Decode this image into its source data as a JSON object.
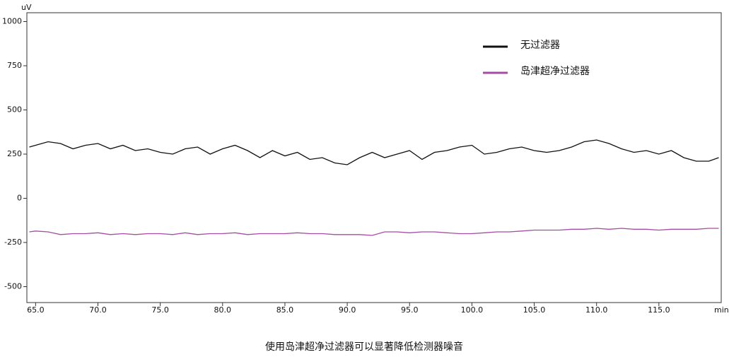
{
  "chart_data": {
    "type": "line",
    "caption": "使用岛津超净过滤器可以显著降低检测器噪音",
    "y_unit": "uV",
    "x_unit": "min",
    "x": [
      64.5,
      65,
      66,
      67,
      68,
      69,
      70,
      71,
      72,
      73,
      74,
      75,
      76,
      77,
      78,
      79,
      80,
      81,
      82,
      83,
      84,
      85,
      86,
      87,
      88,
      89,
      90,
      91,
      92,
      93,
      94,
      95,
      96,
      97,
      98,
      99,
      100,
      101,
      102,
      103,
      104,
      105,
      106,
      107,
      108,
      109,
      110,
      111,
      112,
      113,
      114,
      115,
      116,
      117,
      118,
      119,
      119.8
    ],
    "series": [
      {
        "name": "无过滤器",
        "color": "#111111",
        "values": [
          290,
          300,
          320,
          310,
          280,
          300,
          310,
          280,
          300,
          270,
          280,
          260,
          250,
          280,
          290,
          250,
          280,
          300,
          270,
          230,
          270,
          240,
          260,
          220,
          230,
          200,
          190,
          230,
          260,
          230,
          250,
          270,
          220,
          260,
          270,
          290,
          300,
          250,
          260,
          280,
          290,
          270,
          260,
          270,
          290,
          320,
          330,
          310,
          280,
          260,
          270,
          250,
          270,
          230,
          210,
          210,
          230
        ]
      },
      {
        "name": "岛津超净过滤器",
        "color": "#a64ca6",
        "values": [
          -190,
          -185,
          -190,
          -205,
          -200,
          -200,
          -195,
          -205,
          -200,
          -205,
          -200,
          -200,
          -205,
          -195,
          -205,
          -200,
          -200,
          -195,
          -205,
          -200,
          -200,
          -200,
          -195,
          -200,
          -200,
          -205,
          -205,
          -205,
          -210,
          -190,
          -190,
          -195,
          -190,
          -190,
          -195,
          -200,
          -200,
          -195,
          -190,
          -190,
          -185,
          -180,
          -180,
          -180,
          -175,
          -175,
          -170,
          -175,
          -170,
          -175,
          -175,
          -180,
          -175,
          -175,
          -175,
          -170,
          -170
        ]
      }
    ],
    "xlim": [
      64.3,
      120
    ],
    "ylim": [
      -590,
      1050
    ],
    "xticks": [
      {
        "value": 65,
        "label": "65.0"
      },
      {
        "value": 70,
        "label": "70.0"
      },
      {
        "value": 75,
        "label": "75.0"
      },
      {
        "value": 80,
        "label": "80.0"
      },
      {
        "value": 85,
        "label": "85.0"
      },
      {
        "value": 90,
        "label": "90.0"
      },
      {
        "value": 95,
        "label": "95.0"
      },
      {
        "value": 100,
        "label": "100.0"
      },
      {
        "value": 105,
        "label": "105.0"
      },
      {
        "value": 110,
        "label": "110.0"
      },
      {
        "value": 115,
        "label": "115.0"
      }
    ],
    "yticks": [
      1000,
      750,
      500,
      250,
      0,
      -250,
      -500
    ],
    "legend": "top-right"
  }
}
